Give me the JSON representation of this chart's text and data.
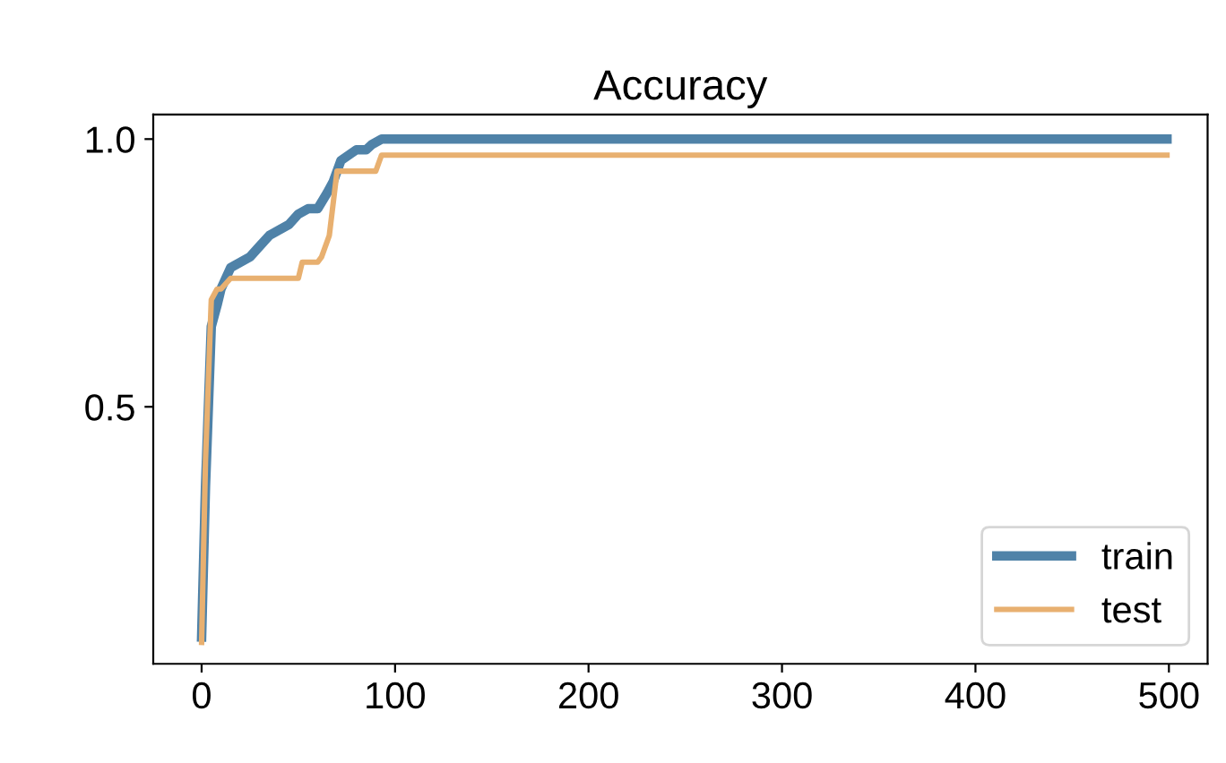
{
  "chart_data": {
    "type": "line",
    "title": "Accuracy",
    "xlim": [
      -25,
      520
    ],
    "ylim": [
      0.02,
      1.046
    ],
    "xticks": [
      0,
      100,
      200,
      300,
      400,
      500
    ],
    "yticks": [
      0.5,
      {
        "value": 1,
        "label": "1.0"
      }
    ],
    "series": [
      {
        "name": "train",
        "color": "#4f82a8",
        "x": [
          0,
          2,
          5,
          8,
          10,
          15,
          20,
          25,
          30,
          35,
          40,
          45,
          50,
          55,
          60,
          65,
          68,
          72,
          76,
          80,
          85,
          88,
          93,
          100,
          200,
          300,
          400,
          499
        ],
        "values": [
          0.07,
          0.35,
          0.65,
          0.69,
          0.72,
          0.76,
          0.77,
          0.78,
          0.8,
          0.82,
          0.83,
          0.84,
          0.86,
          0.87,
          0.87,
          0.9,
          0.92,
          0.96,
          0.97,
          0.98,
          0.98,
          0.99,
          1.0,
          1.0,
          1.0,
          1.0,
          1.0,
          1.0
        ]
      },
      {
        "name": "test",
        "color": "#e8b070",
        "x": [
          0,
          2,
          5,
          8,
          10,
          15,
          20,
          30,
          40,
          50,
          52,
          60,
          62,
          66,
          70,
          75,
          80,
          90,
          93,
          100,
          200,
          300,
          400,
          499
        ],
        "values": [
          0.06,
          0.4,
          0.7,
          0.72,
          0.72,
          0.74,
          0.74,
          0.74,
          0.74,
          0.74,
          0.77,
          0.77,
          0.78,
          0.82,
          0.94,
          0.94,
          0.94,
          0.94,
          0.97,
          0.97,
          0.97,
          0.97,
          0.97,
          0.97
        ]
      }
    ],
    "legend": "lower right",
    "grid": false
  }
}
